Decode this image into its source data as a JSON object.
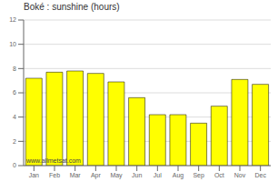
{
  "chart_data": {
    "type": "bar",
    "title": "Boké : sunshine (hours)",
    "categories": [
      "Jan",
      "Feb",
      "Mar",
      "Apr",
      "May",
      "Jun",
      "Jul",
      "Aug",
      "Sep",
      "Oct",
      "Nov",
      "Dec"
    ],
    "values": [
      7.2,
      7.7,
      7.8,
      7.6,
      6.9,
      5.6,
      4.2,
      4.2,
      3.5,
      4.9,
      7.1,
      6.7
    ],
    "color": "#ffff00",
    "ylim": [
      0,
      12
    ],
    "yticks": [
      0,
      2,
      4,
      6,
      8,
      10,
      12
    ],
    "grid": true,
    "annotations": [
      "www.allmetsat.com"
    ]
  }
}
